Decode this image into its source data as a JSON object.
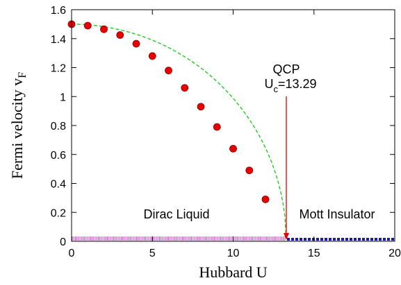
{
  "chart_data": {
    "type": "scatter",
    "xlabel": "Hubbard U",
    "ylabel_main": "Fermi velocity v",
    "ylabel_sub": "F",
    "xlim": [
      0,
      20
    ],
    "ylim": [
      0,
      1.6
    ],
    "xticks": [
      0,
      5,
      10,
      15,
      20
    ],
    "xtick_labels": [
      "0",
      "5",
      "10",
      "15",
      "20"
    ],
    "yticks": [
      0,
      0.2,
      0.4,
      0.6,
      0.8,
      1,
      1.2,
      1.4,
      1.6
    ],
    "ytick_labels": [
      "0",
      "0.2",
      "0.4",
      "0.6",
      "0.8",
      "1",
      "1.2",
      "1.4",
      "1.6"
    ],
    "grid": false,
    "series": [
      {
        "kind": "points",
        "color": "#e60000",
        "outline": "#8b0000",
        "x": [
          0,
          1,
          2,
          3,
          4,
          5,
          6,
          7,
          8,
          9,
          10,
          11,
          12
        ],
        "y": [
          1.5,
          1.49,
          1.465,
          1.425,
          1.365,
          1.28,
          1.18,
          1.06,
          0.93,
          0.79,
          0.64,
          0.49,
          0.29
        ]
      },
      {
        "kind": "fit-curve",
        "color": "#22cc22",
        "dashed": true,
        "v0": 1.5,
        "uc": 13.29
      }
    ],
    "phase_bands": [
      {
        "label": "Dirac Liquid",
        "x": [
          0,
          13.29
        ],
        "color": "#cc44cc"
      },
      {
        "label": "Mott Insulator",
        "x": [
          13.29,
          20
        ],
        "color": "#1a1aaa"
      }
    ],
    "annotations": {
      "qcp_label": "QCP",
      "uc_main": "U",
      "uc_sub": "c",
      "uc_value": "=13.29",
      "arrow_x": 13.29,
      "arrow_color": "#e00000"
    }
  }
}
